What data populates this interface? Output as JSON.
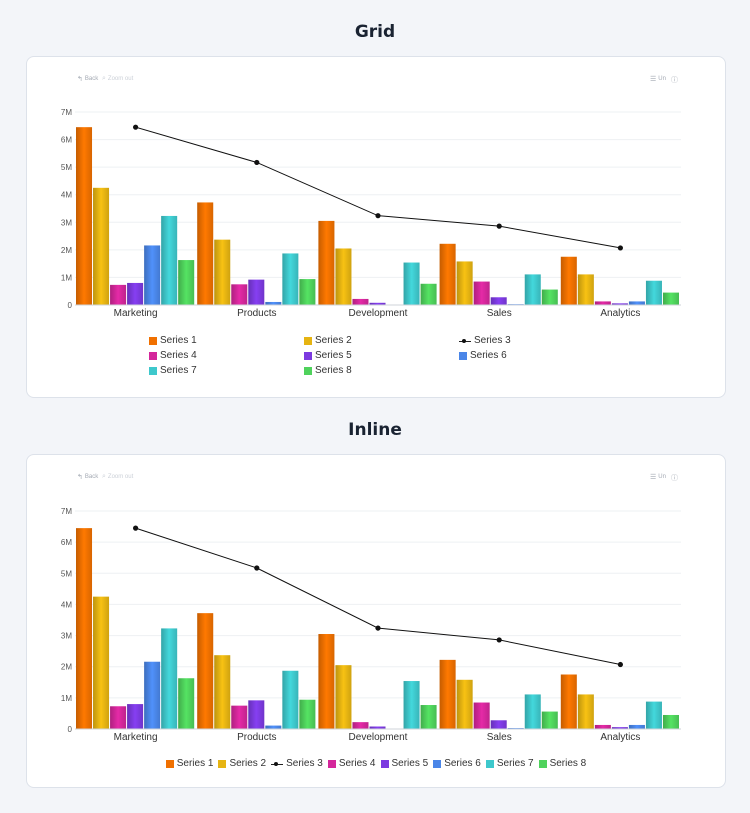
{
  "sections": [
    {
      "title": "Grid",
      "toolbar": {
        "back": "Back",
        "zoom": "Zoom out",
        "menu": "Un"
      }
    },
    {
      "title": "Inline",
      "toolbar": {
        "back": "Back",
        "zoom": "Zoom out",
        "menu": "Un"
      }
    }
  ],
  "chart_data": [
    {
      "type": "bar",
      "legend": "grid",
      "categories": [
        "Marketing",
        "Products",
        "Development",
        "Sales",
        "Analytics"
      ],
      "yticks": [
        "0",
        "1M",
        "2M",
        "3M",
        "4M",
        "5M",
        "6M",
        "7M"
      ],
      "ylim": [
        0,
        7000000
      ],
      "grid": true,
      "series": [
        {
          "name": "Series 1",
          "kind": "bar",
          "color": "#f07000",
          "values": [
            6450000,
            3720000,
            3050000,
            2220000,
            1750000
          ]
        },
        {
          "name": "Series 2",
          "kind": "bar",
          "color": "#e6b412",
          "values": [
            4250000,
            2370000,
            2050000,
            1580000,
            1110000
          ]
        },
        {
          "name": "Series 3",
          "kind": "line",
          "color": "#111111",
          "values": [
            6450000,
            5170000,
            3240000,
            2860000,
            2070000
          ]
        },
        {
          "name": "Series 4",
          "kind": "bar",
          "color": "#d4279b",
          "values": [
            730000,
            750000,
            220000,
            850000,
            130000
          ]
        },
        {
          "name": "Series 5",
          "kind": "bar",
          "color": "#7c3ae0",
          "values": [
            800000,
            920000,
            80000,
            280000,
            60000
          ]
        },
        {
          "name": "Series 6",
          "kind": "bar",
          "color": "#4a86e8",
          "values": [
            2160000,
            110000,
            0,
            30000,
            130000
          ]
        },
        {
          "name": "Series 7",
          "kind": "bar",
          "color": "#3ec8cc",
          "values": [
            3230000,
            1870000,
            1540000,
            1110000,
            880000
          ]
        },
        {
          "name": "Series 8",
          "kind": "bar",
          "color": "#4fd25c",
          "values": [
            1630000,
            940000,
            770000,
            560000,
            450000
          ]
        }
      ]
    },
    {
      "type": "bar",
      "legend": "inline",
      "categories": [
        "Marketing",
        "Products",
        "Development",
        "Sales",
        "Analytics"
      ],
      "yticks": [
        "0",
        "1M",
        "2M",
        "3M",
        "4M",
        "5M",
        "6M",
        "7M"
      ],
      "ylim": [
        0,
        7000000
      ],
      "grid": true,
      "series": [
        {
          "name": "Series 1",
          "kind": "bar",
          "color": "#f07000",
          "values": [
            6450000,
            3720000,
            3050000,
            2220000,
            1750000
          ]
        },
        {
          "name": "Series 2",
          "kind": "bar",
          "color": "#e6b412",
          "values": [
            4250000,
            2370000,
            2050000,
            1580000,
            1110000
          ]
        },
        {
          "name": "Series 3",
          "kind": "line",
          "color": "#111111",
          "values": [
            6450000,
            5170000,
            3240000,
            2860000,
            2070000
          ]
        },
        {
          "name": "Series 4",
          "kind": "bar",
          "color": "#d4279b",
          "values": [
            730000,
            750000,
            220000,
            850000,
            130000
          ]
        },
        {
          "name": "Series 5",
          "kind": "bar",
          "color": "#7c3ae0",
          "values": [
            800000,
            920000,
            80000,
            280000,
            60000
          ]
        },
        {
          "name": "Series 6",
          "kind": "bar",
          "color": "#4a86e8",
          "values": [
            2160000,
            110000,
            0,
            30000,
            130000
          ]
        },
        {
          "name": "Series 7",
          "kind": "bar",
          "color": "#3ec8cc",
          "values": [
            3230000,
            1870000,
            1540000,
            1110000,
            880000
          ]
        },
        {
          "name": "Series 8",
          "kind": "bar",
          "color": "#4fd25c",
          "values": [
            1630000,
            940000,
            770000,
            560000,
            450000
          ]
        }
      ]
    }
  ]
}
